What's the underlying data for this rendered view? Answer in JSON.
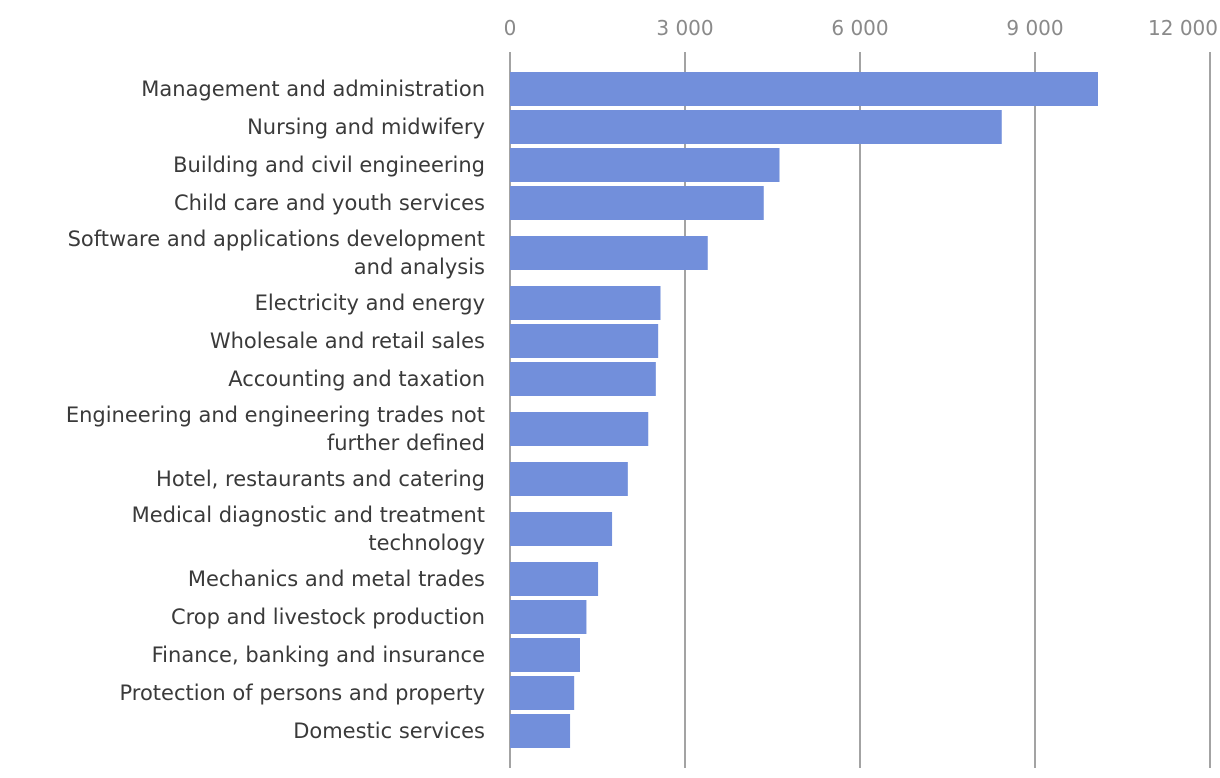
{
  "chart_data": {
    "type": "bar",
    "orientation": "horizontal",
    "title": "",
    "xlabel": "",
    "ylabel": "",
    "xlim": [
      0,
      12000
    ],
    "ticks": [
      0,
      3000,
      6000,
      9000,
      12000
    ],
    "tick_labels": [
      "0",
      "3 000",
      "6 000",
      "9 000",
      "12 000"
    ],
    "axis_position": "top",
    "grid": true,
    "legend": "none",
    "bar_color": "#728fdb",
    "categories": [
      [
        "Management and administration"
      ],
      [
        "Nursing and midwifery"
      ],
      [
        "Building and civil engineering"
      ],
      [
        "Child care and youth services"
      ],
      [
        "Software and applications development",
        "and analysis"
      ],
      [
        "Electricity and energy"
      ],
      [
        "Wholesale and retail sales"
      ],
      [
        "Accounting and taxation"
      ],
      [
        "Engineering and engineering trades not",
        "further defined"
      ],
      [
        "Hotel, restaurants and catering"
      ],
      [
        "Medical diagnostic and treatment",
        "technology"
      ],
      [
        "Mechanics and metal trades"
      ],
      [
        "Crop and livestock production"
      ],
      [
        "Finance, banking and insurance"
      ],
      [
        "Protection of persons and property"
      ],
      [
        "Domestic services"
      ]
    ],
    "values": [
      10080,
      8430,
      4620,
      4350,
      3390,
      2580,
      2540,
      2500,
      2370,
      2020,
      1750,
      1510,
      1310,
      1200,
      1100,
      1030
    ]
  }
}
